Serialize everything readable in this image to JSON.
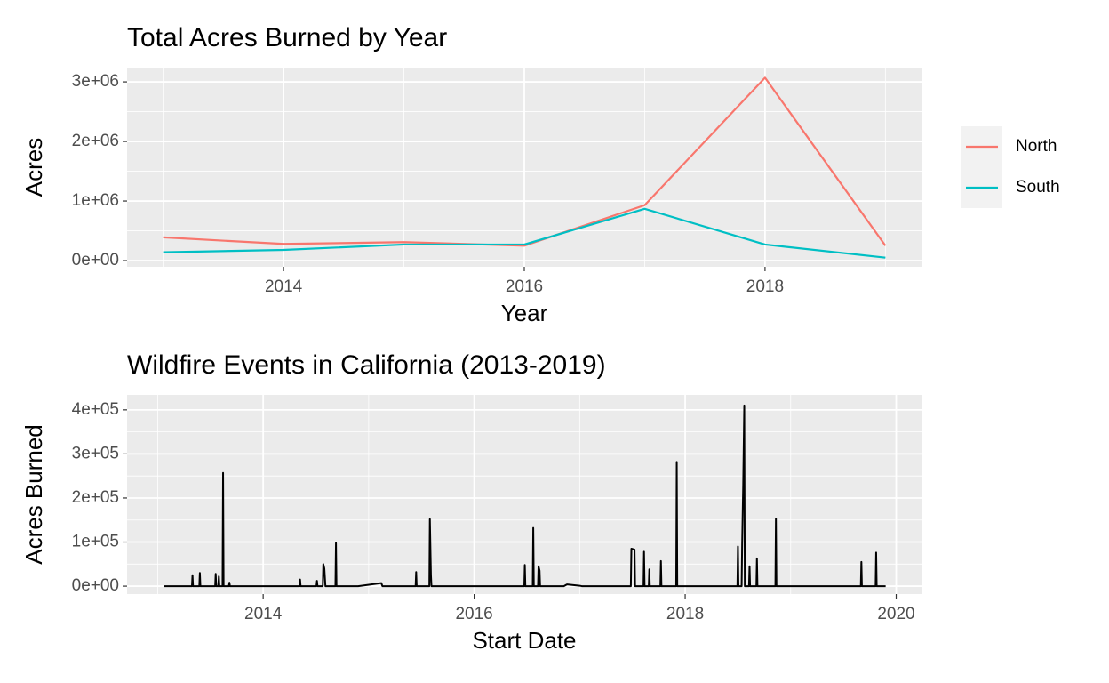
{
  "chart_data": [
    {
      "type": "line",
      "title": "Total Acres Burned by Year",
      "x_label": "Year",
      "y_label": "Acres",
      "x": [
        2013,
        2014,
        2015,
        2016,
        2017,
        2018,
        2019
      ],
      "series": [
        {
          "name": "North",
          "color": "#F8766D",
          "values": [
            390000,
            280000,
            310000,
            250000,
            930000,
            3070000,
            250000
          ]
        },
        {
          "name": "South",
          "color": "#00BFC4",
          "values": [
            140000,
            180000,
            270000,
            270000,
            870000,
            270000,
            50000
          ]
        }
      ],
      "xlim": [
        2012.7,
        2019.3
      ],
      "xticks": [
        2014,
        2016,
        2018
      ],
      "ylim": [
        -104000,
        3240000
      ],
      "yticks": [
        {
          "value": 0,
          "label": "0e+00"
        },
        {
          "value": 1000000,
          "label": "1e+06"
        },
        {
          "value": 2000000,
          "label": "2e+06"
        },
        {
          "value": 3000000,
          "label": "3e+06"
        }
      ],
      "grid": true,
      "legend_position": "right"
    },
    {
      "type": "line",
      "title": "Wildfire Events in California (2013-2019)",
      "x_label": "Start Date",
      "y_label": "Acres Burned",
      "x": [
        2013.06,
        2013.325,
        2013.33,
        2013.335,
        2013.395,
        2013.4,
        2013.405,
        2013.545,
        2013.55,
        2013.555,
        2013.575,
        2013.58,
        2013.585,
        2013.615,
        2013.62,
        2013.625,
        2013.675,
        2013.68,
        2013.685,
        2014.345,
        2014.35,
        2014.355,
        2014.505,
        2014.51,
        2014.515,
        2014.565,
        2014.57,
        2014.58,
        2014.59,
        2014.685,
        2014.69,
        2014.695,
        2014.9,
        2015.12,
        2015.13,
        2015.445,
        2015.45,
        2015.455,
        2015.575,
        2015.58,
        2015.59,
        2015.595,
        2016.475,
        2016.48,
        2016.485,
        2016.555,
        2016.56,
        2016.565,
        2016.605,
        2016.61,
        2016.62,
        2016.625,
        2016.85,
        2016.88,
        2017.0,
        2017.02,
        2017.485,
        2017.49,
        2017.52,
        2017.525,
        2017.605,
        2017.61,
        2017.615,
        2017.655,
        2017.66,
        2017.665,
        2017.765,
        2017.77,
        2017.775,
        2017.915,
        2017.92,
        2017.925,
        2018.495,
        2018.5,
        2018.505,
        2018.535,
        2018.54,
        2018.55,
        2018.56,
        2018.565,
        2018.605,
        2018.61,
        2018.615,
        2018.675,
        2018.68,
        2018.685,
        2018.855,
        2018.86,
        2018.865,
        2019.665,
        2019.67,
        2019.675,
        2019.805,
        2019.81,
        2019.815,
        2019.9
      ],
      "values": [
        0,
        0,
        25000,
        0,
        0,
        30000,
        0,
        0,
        28000,
        0,
        0,
        22000,
        0,
        0,
        257000,
        0,
        0,
        8000,
        0,
        0,
        15000,
        0,
        0,
        12000,
        0,
        0,
        50000,
        40000,
        0,
        0,
        98000,
        0,
        0,
        7000,
        0,
        0,
        32000,
        0,
        0,
        152000,
        25000,
        0,
        0,
        48000,
        0,
        0,
        132000,
        0,
        0,
        45000,
        35000,
        0,
        0,
        4000,
        1000,
        0,
        0,
        85000,
        83000,
        0,
        0,
        78000,
        0,
        0,
        38000,
        0,
        0,
        57000,
        0,
        0,
        282000,
        0,
        0,
        90000,
        0,
        0,
        95000,
        230000,
        410000,
        0,
        0,
        45000,
        0,
        0,
        63000,
        0,
        0,
        153000,
        0,
        0,
        55000,
        0,
        0,
        76000,
        0,
        0
      ],
      "color": "#000000",
      "xlim": [
        2012.71,
        2020.24
      ],
      "xticks": [
        2014,
        2016,
        2018,
        2020
      ],
      "ylim": [
        -18000,
        434000
      ],
      "yticks": [
        {
          "value": 0,
          "label": "0e+00"
        },
        {
          "value": 100000,
          "label": "1e+05"
        },
        {
          "value": 200000,
          "label": "2e+05"
        },
        {
          "value": 300000,
          "label": "3e+05"
        },
        {
          "value": 400000,
          "label": "4e+05"
        }
      ],
      "grid": true
    }
  ]
}
